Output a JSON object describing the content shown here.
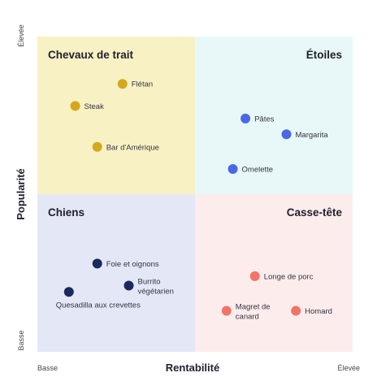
{
  "chart_data": {
    "type": "scatter",
    "xlabel": "Rentabilité",
    "ylabel": "Popularité",
    "x_low": "Basse",
    "x_high": "Élevée",
    "y_low": "Basse",
    "y_high": "Élevée",
    "xlim": [
      0,
      10
    ],
    "ylim": [
      0,
      10
    ],
    "quadrants": [
      {
        "id": "top-left",
        "name": "Chevaux de trait",
        "color": "#f8f1c4",
        "point_color": "#d4a81c"
      },
      {
        "id": "top-right",
        "name": "Étoiles",
        "color": "#e8f8f8",
        "point_color": "#4a68e6"
      },
      {
        "id": "bottom-left",
        "name": "Chiens",
        "color": "#e4e8f6",
        "point_color": "#1b2a5e"
      },
      {
        "id": "bottom-right",
        "name": "Casse-tête",
        "color": "#fdecec",
        "point_color": "#f27368"
      }
    ],
    "points": [
      {
        "label": "Flétan",
        "x": 2.7,
        "y": 8.5,
        "quadrant": "top-left"
      },
      {
        "label": "Steak",
        "x": 1.2,
        "y": 7.8,
        "quadrant": "top-left"
      },
      {
        "label": "Bar d'Amérique",
        "x": 1.9,
        "y": 6.5,
        "quadrant": "top-left"
      },
      {
        "label": "Pâtes",
        "x": 6.6,
        "y": 7.4,
        "quadrant": "top-right"
      },
      {
        "label": "Margarita",
        "x": 7.9,
        "y": 6.9,
        "quadrant": "top-right"
      },
      {
        "label": "Omelette",
        "x": 6.2,
        "y": 5.8,
        "quadrant": "top-right"
      },
      {
        "label": "Foie et oignons",
        "x": 1.9,
        "y": 2.8,
        "quadrant": "bottom-left"
      },
      {
        "label": "Burrito végétarien",
        "x": 2.9,
        "y": 2.1,
        "quadrant": "bottom-left"
      },
      {
        "label": "Quesadilla aux crevettes",
        "x": 1.0,
        "y": 1.9,
        "quadrant": "bottom-left"
      },
      {
        "label": "Longe de porc",
        "x": 6.9,
        "y": 2.4,
        "quadrant": "bottom-right"
      },
      {
        "label": "Magret de canard",
        "x": 6.0,
        "y": 1.3,
        "quadrant": "bottom-right"
      },
      {
        "label": "Homard",
        "x": 8.2,
        "y": 1.3,
        "quadrant": "bottom-right"
      }
    ]
  }
}
